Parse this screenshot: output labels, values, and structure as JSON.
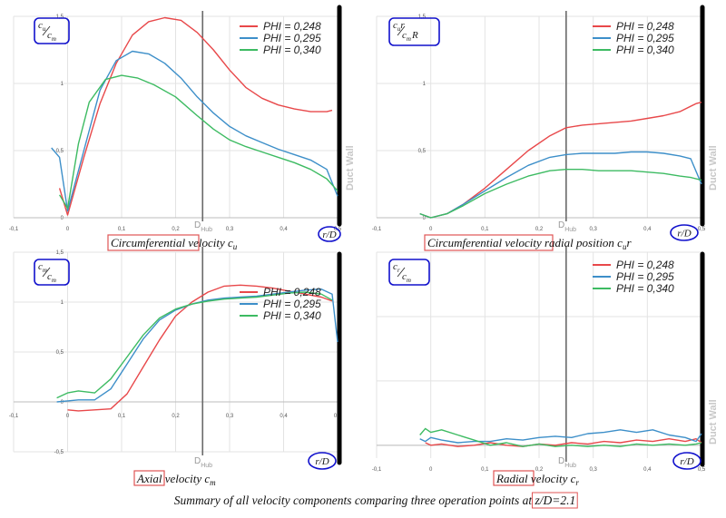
{
  "colors": {
    "PHI = 0,248": "#e8484a",
    "PHI = 0,295": "#3d8fc9",
    "PHI = 0,340": "#3dbb62",
    "box_blue": "#1010cc",
    "box_red": "#e05555"
  },
  "summary": {
    "pre": "Summary of all velocity components comparing three operation points at ",
    "boxed": "z/D=2.1"
  },
  "chart_data": [
    {
      "type": "line",
      "ylabel_frac": {
        "num": "c",
        "num_sub": "u",
        "den": "c",
        "den_sub": "m"
      },
      "xlabel": "r/D",
      "x_ticks": [
        "-0,1",
        "0",
        "0,1",
        "0,2",
        "0,3",
        "0,4",
        "0,5"
      ],
      "y_ticks": [
        "0",
        "0,5",
        "1",
        "1,5"
      ],
      "xlim": [
        -0.1,
        0.5
      ],
      "ylim": [
        0,
        1.5
      ],
      "hub_label": {
        "main": "D",
        "sub": "Hub"
      },
      "hub_x": 0.25,
      "duct_label": "Duct Wall",
      "caption": {
        "boxed": "Circumferential",
        "rest": " velocity c",
        "sub": "u"
      },
      "series": [
        {
          "name": "PHI = 0,248",
          "x": [
            -0.015,
            0,
            0.03,
            0.06,
            0.09,
            0.12,
            0.15,
            0.18,
            0.21,
            0.24,
            0.27,
            0.3,
            0.33,
            0.36,
            0.39,
            0.42,
            0.45,
            0.48,
            0.49
          ],
          "y": [
            0.22,
            0.02,
            0.45,
            0.85,
            1.15,
            1.36,
            1.46,
            1.49,
            1.47,
            1.38,
            1.25,
            1.1,
            0.97,
            0.89,
            0.84,
            0.81,
            0.79,
            0.79,
            0.8
          ]
        },
        {
          "name": "PHI = 0,295",
          "x": [
            -0.03,
            -0.015,
            0,
            0.03,
            0.06,
            0.09,
            0.12,
            0.15,
            0.18,
            0.21,
            0.24,
            0.27,
            0.3,
            0.33,
            0.36,
            0.39,
            0.42,
            0.45,
            0.48,
            0.5
          ],
          "y": [
            0.52,
            0.45,
            0.05,
            0.5,
            0.95,
            1.17,
            1.24,
            1.22,
            1.15,
            1.04,
            0.9,
            0.78,
            0.68,
            0.61,
            0.56,
            0.51,
            0.47,
            0.43,
            0.36,
            0.16
          ]
        },
        {
          "name": "PHI = 0,340",
          "x": [
            -0.015,
            0,
            0.02,
            0.04,
            0.07,
            0.1,
            0.13,
            0.16,
            0.2,
            0.24,
            0.27,
            0.3,
            0.33,
            0.36,
            0.39,
            0.42,
            0.45,
            0.48,
            0.5
          ],
          "y": [
            0.17,
            0.07,
            0.55,
            0.86,
            1.03,
            1.06,
            1.04,
            0.99,
            0.9,
            0.76,
            0.66,
            0.58,
            0.53,
            0.49,
            0.45,
            0.41,
            0.36,
            0.29,
            0.2
          ]
        }
      ]
    },
    {
      "type": "line",
      "ylabel_frac": {
        "num": "c",
        "num_sub": "u",
        "num_tail": "r",
        "den": "c",
        "den_sub": "m",
        "den_tail": "R"
      },
      "xlabel": "r/D",
      "x_ticks": [
        "-0,1",
        "0",
        "0,1",
        "0,2",
        "0,3",
        "0,4",
        "0,5"
      ],
      "y_ticks": [
        "0",
        "0,5",
        "1",
        "1,5"
      ],
      "xlim": [
        -0.1,
        0.5
      ],
      "ylim": [
        0,
        1.5
      ],
      "hub_label": {
        "main": "D",
        "sub": "Hub"
      },
      "hub_x": 0.25,
      "duct_label": "Duct Wall",
      "caption": {
        "boxed": "Circumferential velocity",
        "rest": "   radial position c",
        "sub": "u",
        "tail": "r"
      },
      "series": [
        {
          "name": "PHI = 0,248",
          "x": [
            -0.02,
            0,
            0.03,
            0.06,
            0.1,
            0.14,
            0.18,
            0.22,
            0.25,
            0.28,
            0.31,
            0.34,
            0.37,
            0.4,
            0.43,
            0.46,
            0.49,
            0.5
          ],
          "y": [
            0.03,
            0.0,
            0.03,
            0.1,
            0.22,
            0.36,
            0.5,
            0.61,
            0.67,
            0.69,
            0.7,
            0.71,
            0.72,
            0.74,
            0.76,
            0.79,
            0.85,
            0.86
          ]
        },
        {
          "name": "PHI = 0,295",
          "x": [
            -0.02,
            0,
            0.03,
            0.06,
            0.1,
            0.14,
            0.18,
            0.22,
            0.25,
            0.28,
            0.31,
            0.34,
            0.37,
            0.4,
            0.43,
            0.46,
            0.48,
            0.5
          ],
          "y": [
            0.03,
            0.0,
            0.03,
            0.1,
            0.2,
            0.3,
            0.39,
            0.45,
            0.47,
            0.48,
            0.48,
            0.48,
            0.49,
            0.49,
            0.48,
            0.46,
            0.44,
            0.25
          ]
        },
        {
          "name": "PHI = 0,340",
          "x": [
            -0.02,
            0,
            0.03,
            0.06,
            0.1,
            0.14,
            0.18,
            0.22,
            0.25,
            0.28,
            0.31,
            0.34,
            0.37,
            0.4,
            0.43,
            0.46,
            0.48,
            0.5
          ],
          "y": [
            0.03,
            0.0,
            0.03,
            0.09,
            0.18,
            0.25,
            0.31,
            0.35,
            0.36,
            0.36,
            0.35,
            0.35,
            0.35,
            0.34,
            0.33,
            0.31,
            0.3,
            0.28
          ]
        }
      ]
    },
    {
      "type": "line",
      "ylabel_frac": {
        "num": "c",
        "num_sub": "m",
        "den": "c",
        "den_sub": "m"
      },
      "xlabel": "r/D",
      "x_ticks": [
        "-0,1",
        "0",
        "0,1",
        "0,2",
        "0,3",
        "0,4",
        "0,5"
      ],
      "y_ticks": [
        "1,5",
        "1",
        "0,5",
        "0",
        "-0,5"
      ],
      "xlim": [
        -0.1,
        0.5
      ],
      "ylim": [
        -0.5,
        1.5
      ],
      "hub_label": {
        "main": "D",
        "sub": "Hub"
      },
      "hub_x": 0.25,
      "duct_label": "",
      "caption": {
        "boxed": "Axial",
        "rest": " velocity c",
        "sub": "m"
      },
      "series": [
        {
          "name": "PHI = 0,248",
          "x": [
            0,
            0.02,
            0.05,
            0.08,
            0.11,
            0.14,
            0.17,
            0.2,
            0.23,
            0.26,
            0.29,
            0.32,
            0.35,
            0.38,
            0.41,
            0.44,
            0.47,
            0.49
          ],
          "y": [
            -0.08,
            -0.09,
            -0.08,
            -0.07,
            0.08,
            0.35,
            0.62,
            0.86,
            1.0,
            1.1,
            1.16,
            1.17,
            1.16,
            1.14,
            1.11,
            1.08,
            1.05,
            1.01
          ]
        },
        {
          "name": "PHI = 0,295",
          "x": [
            -0.02,
            0,
            0.02,
            0.05,
            0.08,
            0.11,
            0.14,
            0.17,
            0.2,
            0.23,
            0.26,
            0.29,
            0.32,
            0.35,
            0.38,
            0.41,
            0.44,
            0.47,
            0.49,
            0.5
          ],
          "y": [
            0.0,
            0.01,
            0.02,
            0.02,
            0.13,
            0.38,
            0.63,
            0.82,
            0.92,
            0.98,
            1.02,
            1.04,
            1.05,
            1.06,
            1.08,
            1.1,
            1.12,
            1.13,
            1.08,
            0.6
          ]
        },
        {
          "name": "PHI = 0,340",
          "x": [
            -0.02,
            0,
            0.02,
            0.05,
            0.08,
            0.11,
            0.14,
            0.17,
            0.2,
            0.23,
            0.26,
            0.29,
            0.32,
            0.35,
            0.38,
            0.41,
            0.44,
            0.47,
            0.49
          ],
          "y": [
            0.04,
            0.09,
            0.11,
            0.09,
            0.23,
            0.45,
            0.67,
            0.84,
            0.93,
            0.98,
            1.01,
            1.03,
            1.04,
            1.05,
            1.07,
            1.09,
            1.1,
            1.08,
            1.02
          ]
        }
      ]
    },
    {
      "type": "line",
      "ylabel_frac": {
        "num": "c",
        "num_sub": "r",
        "den": "c",
        "den_sub": "m"
      },
      "xlabel": "r/D",
      "x_ticks": [
        "-0,1",
        "0",
        "0,1",
        "0,2",
        "0,3",
        "0,4",
        "0,5"
      ],
      "y_ticks": [],
      "xlim": [
        -0.1,
        0.5
      ],
      "ylim": [
        -0.1,
        1.5
      ],
      "hub_label": {
        "main": "D",
        "sub": "Hub"
      },
      "hub_x": 0.25,
      "duct_label": "Duct Wall",
      "caption": {
        "boxed": "Radial",
        "rest": " velocity c",
        "sub": "r"
      },
      "series": [
        {
          "name": "PHI = 0,248",
          "x": [
            -0.01,
            0.0,
            0.02,
            0.05,
            0.08,
            0.11,
            0.14,
            0.17,
            0.2,
            0.23,
            0.26,
            0.29,
            0.32,
            0.35,
            0.38,
            0.41,
            0.44,
            0.47,
            0.49,
            0.5
          ],
          "y": [
            0.02,
            0.0,
            0.01,
            -0.01,
            0.0,
            0.02,
            0.0,
            -0.01,
            0.01,
            0.0,
            0.02,
            0.01,
            0.03,
            0.02,
            0.04,
            0.03,
            0.05,
            0.03,
            0.05,
            0.02
          ]
        },
        {
          "name": "PHI = 0,295",
          "x": [
            -0.02,
            -0.01,
            0.0,
            0.02,
            0.05,
            0.08,
            0.11,
            0.14,
            0.17,
            0.2,
            0.23,
            0.26,
            0.29,
            0.32,
            0.35,
            0.38,
            0.41,
            0.44,
            0.47,
            0.49,
            0.5
          ],
          "y": [
            0.05,
            0.03,
            0.06,
            0.04,
            0.02,
            0.03,
            0.03,
            0.05,
            0.04,
            0.06,
            0.07,
            0.06,
            0.09,
            0.1,
            0.12,
            0.1,
            0.12,
            0.08,
            0.06,
            0.03,
            0.09
          ]
        },
        {
          "name": "PHI = 0,340",
          "x": [
            -0.02,
            -0.01,
            0.0,
            0.02,
            0.05,
            0.08,
            0.11,
            0.14,
            0.17,
            0.2,
            0.23,
            0.26,
            0.29,
            0.32,
            0.35,
            0.38,
            0.41,
            0.44,
            0.47,
            0.49,
            0.5
          ],
          "y": [
            0.08,
            0.13,
            0.1,
            0.12,
            0.08,
            0.04,
            0.0,
            0.02,
            -0.01,
            0.01,
            -0.01,
            0.0,
            -0.01,
            0.0,
            -0.01,
            0.01,
            0.0,
            0.01,
            0.0,
            0.01,
            0.02
          ]
        }
      ]
    }
  ]
}
